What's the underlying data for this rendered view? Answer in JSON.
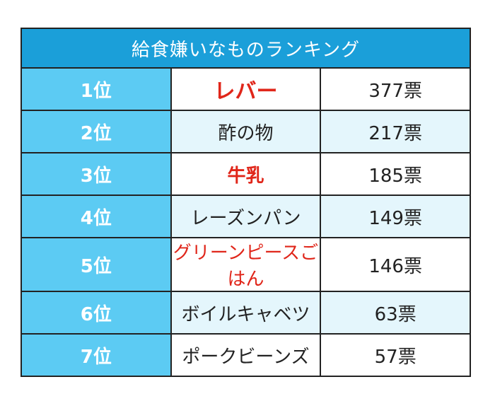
{
  "title": "給食嫌いなものランキング",
  "rows": [
    {
      "rank": "1位",
      "item": "レバー",
      "votes": "377票"
    },
    {
      "rank": "2位",
      "item": "酢の物",
      "votes": "217票"
    },
    {
      "rank": "3位",
      "item": "牛乳",
      "votes": "185票"
    },
    {
      "rank": "4位",
      "item": "レーズンパン",
      "votes": "149票"
    },
    {
      "rank": "5位",
      "item": "グリーンピースごはん",
      "votes": "146票"
    },
    {
      "rank": "6位",
      "item": "ボイルキャベツ",
      "votes": "63票"
    },
    {
      "rank": "7位",
      "item": "ポークビーンズ",
      "votes": "57票"
    }
  ],
  "colors": {
    "title_bg": "#1b9fd9",
    "rank_bg": "#5ccbf3",
    "highlight_text": "#e0261a",
    "alt_row_bg": "#e4f6fc"
  }
}
